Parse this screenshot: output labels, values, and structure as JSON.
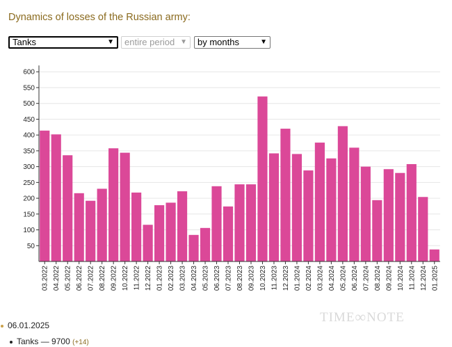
{
  "title": "Dynamics of losses of the Russian army:",
  "controls": {
    "category_select": "Tanks",
    "period_select": "entire period",
    "grouping_select": "by months"
  },
  "watermark": {
    "left": "TIME",
    "right": "NOTE"
  },
  "summary": {
    "date": "06.01.2025",
    "item_name": "Tanks",
    "item_separator": "—",
    "item_value": "9700",
    "item_delta": "(+14)"
  },
  "chart_data": {
    "type": "bar",
    "title": "",
    "xlabel": "",
    "ylabel": "",
    "ylim": [
      0,
      620
    ],
    "yticks": [
      50,
      100,
      150,
      200,
      250,
      300,
      350,
      400,
      450,
      500,
      550,
      600
    ],
    "grid": true,
    "bar_color": "#db4898",
    "categories": [
      "03.2022",
      "04.2022",
      "05.2022",
      "06.2022",
      "07.2022",
      "08.2022",
      "09.2022",
      "10.2022",
      "11.2022",
      "12.2022",
      "01.2023",
      "02.2023",
      "03.2023",
      "04.2023",
      "05.2023",
      "06.2023",
      "07.2023",
      "08.2023",
      "09.2023",
      "10.2023",
      "11.2023",
      "12.2023",
      "01.2024",
      "02.2024",
      "03.2024",
      "04.2024",
      "05.2024",
      "06.2024",
      "07.2024",
      "08.2024",
      "09.2024",
      "10.2024",
      "11.2024",
      "12.2024",
      "01.2025"
    ],
    "values": [
      414,
      402,
      336,
      216,
      192,
      230,
      358,
      344,
      218,
      116,
      178,
      186,
      222,
      84,
      106,
      238,
      174,
      244,
      244,
      522,
      342,
      420,
      340,
      288,
      376,
      326,
      428,
      360,
      300,
      194,
      292,
      280,
      308,
      204,
      38
    ]
  }
}
